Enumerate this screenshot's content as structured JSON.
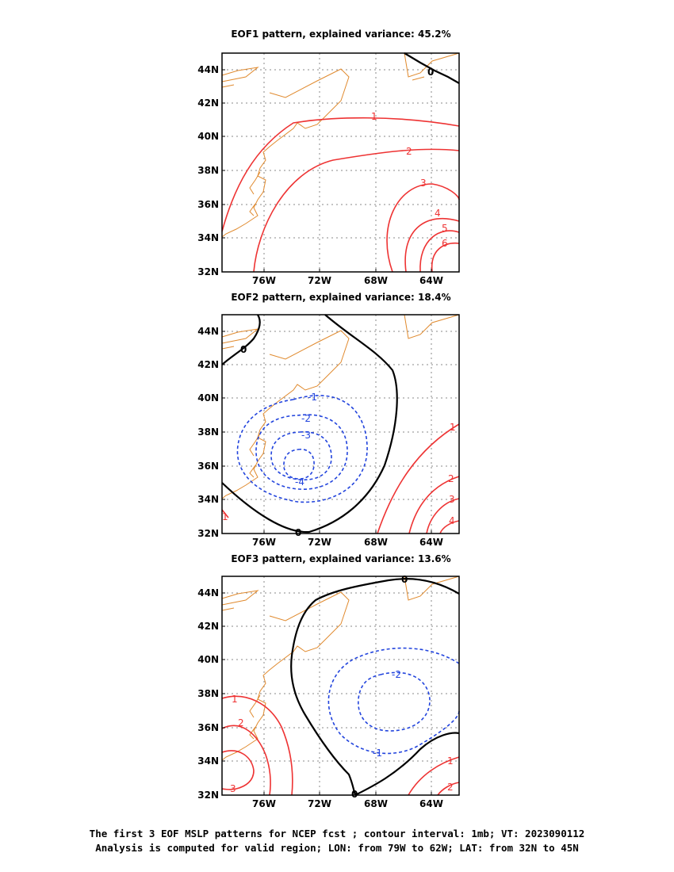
{
  "panels": [
    {
      "title": "EOF1 pattern, explained variance: 45.2%",
      "contour_labels": [
        "0",
        "1",
        "2",
        "3",
        "4",
        "5",
        "6"
      ]
    },
    {
      "title": "EOF2 pattern, explained variance: 18.4%",
      "contour_labels": [
        "0",
        "-1",
        "-2",
        "-3",
        "-4",
        "0",
        "1",
        "2",
        "3",
        "4",
        "1"
      ]
    },
    {
      "title": "EOF3 pattern, explained variance: 13.6%",
      "contour_labels": [
        "0",
        "0",
        "-1",
        "-2",
        "1",
        "2",
        "3",
        "1",
        "2"
      ]
    }
  ],
  "lat_ticks": [
    "44N",
    "42N",
    "40N",
    "38N",
    "36N",
    "34N",
    "32N"
  ],
  "lon_ticks": [
    "76W",
    "72W",
    "68W",
    "64W"
  ],
  "caption": {
    "line1": "The first 3 EOF MSLP patterns for NCEP fcst ; contour interval: 1mb; VT: 2023090112",
    "line2": "Analysis is computed for valid region; LON: from 79W to 62W; LAT: from 32N to 45N"
  },
  "colors": {
    "positive": "#ee3333",
    "negative": "#2244dd",
    "zero": "#000000",
    "coast": "#e08a2e",
    "grid": "#888888"
  }
}
